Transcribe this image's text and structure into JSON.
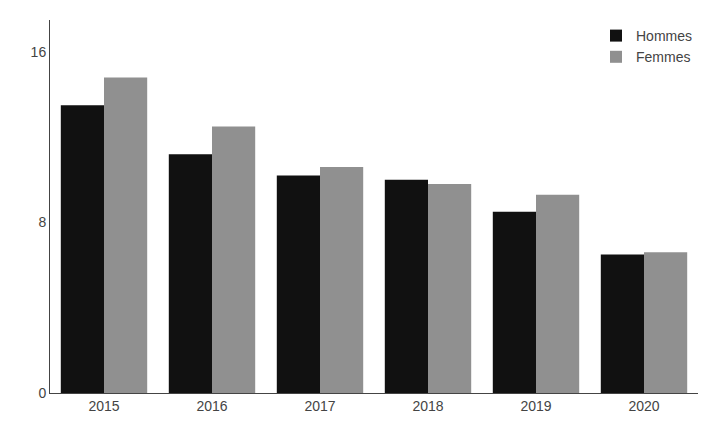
{
  "chart_data": {
    "type": "bar",
    "categories": [
      "2015",
      "2016",
      "2017",
      "2018",
      "2019",
      "2020"
    ],
    "series": [
      {
        "name": "Hommes",
        "color": "#111111",
        "values": [
          13.5,
          11.2,
          10.2,
          10.0,
          8.5,
          6.5
        ]
      },
      {
        "name": "Femmes",
        "color": "#909090",
        "values": [
          14.8,
          12.5,
          10.6,
          9.8,
          9.3,
          6.6
        ]
      }
    ],
    "ylim": [
      0,
      17.5
    ],
    "yticks": [
      0,
      8,
      16
    ],
    "grid": false,
    "legend": "upper right"
  }
}
